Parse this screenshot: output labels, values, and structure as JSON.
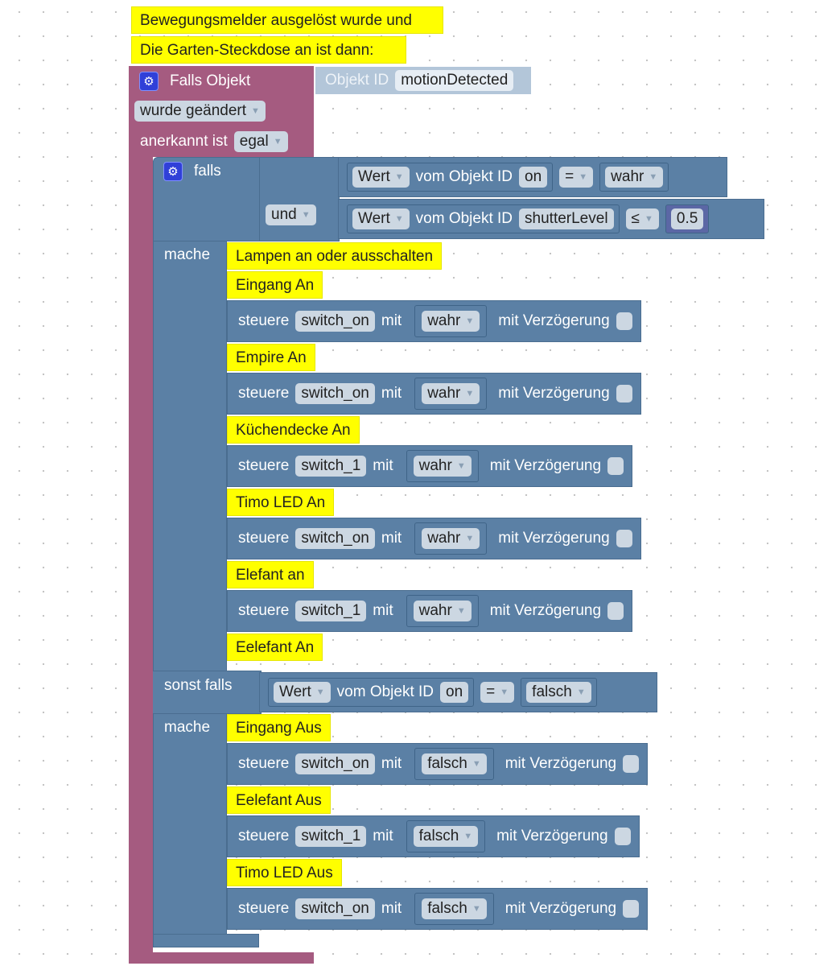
{
  "comments_top": [
    "Bewegungsmelder ausgelöst wurde und",
    "Die Garten-Steckdose an ist dann:"
  ],
  "trigger": {
    "title": "Falls Objekt",
    "object_label": "Objekt ID",
    "object_id": "motionDetected",
    "event": "wurde geändert",
    "ack_label": "anerkannt ist",
    "ack_value": "egal"
  },
  "if_block": {
    "if_label": "falls",
    "logic_op": "und",
    "do_label": "mache",
    "elseif_label": "sonst falls",
    "condition1": {
      "field": "Wert",
      "of_label": "vom Objekt ID",
      "object_id": "on",
      "op": "=",
      "value": "wahr"
    },
    "condition2": {
      "field": "Wert",
      "of_label": "vom Objekt ID",
      "object_id": "shutterLevel",
      "op": "≤",
      "value": "0.5"
    },
    "condition3": {
      "field": "Wert",
      "of_label": "vom Objekt ID",
      "object_id": "on",
      "op": "=",
      "value": "falsch"
    }
  },
  "control_labels": {
    "verb": "steuere",
    "with": "mit",
    "delay": "mit Verzögerung"
  },
  "then_statements": [
    {
      "comment": "Lampen an oder ausschalten"
    },
    {
      "comment": "Eingang An"
    },
    {
      "target": "switch_on",
      "value": "wahr"
    },
    {
      "comment": "Empire An"
    },
    {
      "target": "switch_on",
      "value": "wahr"
    },
    {
      "comment": "Küchendecke An"
    },
    {
      "target": "switch_1",
      "value": "wahr"
    },
    {
      "comment": "Timo LED An"
    },
    {
      "target": "switch_on",
      "value": "wahr"
    },
    {
      "comment": "Elefant an"
    },
    {
      "target": "switch_1",
      "value": "wahr"
    },
    {
      "comment": "Eelefant An"
    }
  ],
  "else_statements": [
    {
      "comment": "Eingang Aus"
    },
    {
      "target": "switch_on",
      "value": "falsch"
    },
    {
      "comment": "Eelefant Aus"
    },
    {
      "target": "switch_1",
      "value": "falsch"
    },
    {
      "comment": "Timo LED Aus"
    },
    {
      "target": "switch_on",
      "value": "falsch"
    }
  ],
  "colors": {
    "trigger_block": "#a55b80",
    "logic_block": "#5b80a5",
    "comment": "#ffff00",
    "object_block": "#b3c6d9",
    "number_block": "#5b67a5"
  }
}
